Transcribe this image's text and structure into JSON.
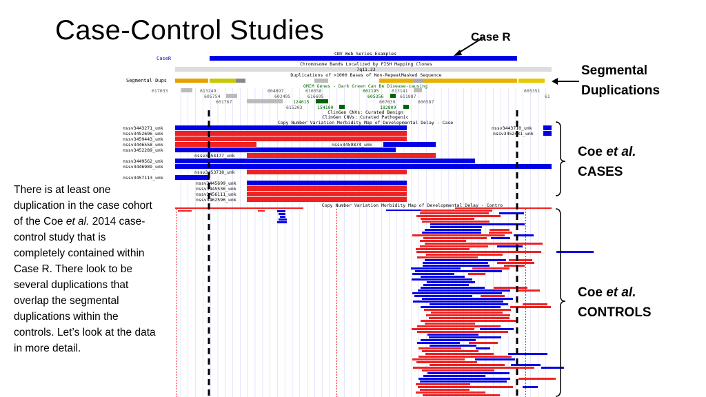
{
  "slide": {
    "title": "Case-Control Studies",
    "case_r_label": "Case R",
    "seg_dup_label_line1": "Segmental",
    "seg_dup_label_line2": "Duplications",
    "cases_label_prefix": "Coe ",
    "cases_label_italic": "et al.",
    "cases_label_line2": "CASES",
    "controls_label_prefix": "Coe ",
    "controls_label_italic": "et al.",
    "controls_label_line2": "CONTROLS",
    "body_part1": "There is at least one duplication in the case cohort of the Coe ",
    "body_italic": "et al.",
    "body_part2": " 2014 case-control study that is completely contained within Case R. There look to be several duplications that overlap the segmental duplications within the controls.  Let’s look at the data in more detail."
  },
  "browser": {
    "case_track_label": "CaseR",
    "track_titles": {
      "cnv_web": "CNV Web Series Examples",
      "fish": "Chromosome Bands Localized by FISH Mapping Clones",
      "band": "7q11.23",
      "dups": "Duplications of >1000 Bases of Non-RepeatMasked Sequence",
      "omim": "OMIM Genes - Dark Green Can Be Disease-causing",
      "clingen_benign": "ClinGen CNVs: Curated Benign",
      "clingen_path": "ClinGen CNVs: Curated Pathogenic",
      "case_map": "Copy Number Variation Morbidity Map of Developmental Delay - Case",
      "control_map": "Copy Number Variation Morbidity Map of Developmental Delay - Contro"
    },
    "seg_dups_label": "Segmental Dups",
    "omim_ids": [
      "617033",
      "613249",
      "605754",
      "601767",
      "604697",
      "602495",
      "615203",
      "616558",
      "616695",
      "124015",
      "154100",
      "602195",
      "605356",
      "607639",
      "182809",
      "613141",
      "611887",
      "600587",
      "605351",
      "61"
    ],
    "case_labels_left": [
      "nssv3443271_unk",
      "nssv3452696_unk",
      "nssv3459443_unk",
      "nssv3446558_unk",
      "nssv3452289_unk",
      "nssv3449562_unk",
      "nssv3446989_unk",
      "nssv3457113_unk"
    ],
    "case_labels_inner": [
      "nssv3454177_unk",
      "nssv3459874_unk",
      "nssv3453718_unk",
      "nssv3445699_unk",
      "nssv3445536_unk",
      "nssv3456111_unk",
      "nssv3462596_unk"
    ],
    "case_labels_right": [
      "nssv3443710_unk",
      "nssv3452431_unk"
    ],
    "colors": {
      "dup_blue": "#0000e6",
      "del_red": "#ee2222",
      "omim_green": "#006400",
      "segdup_orange": "#e8a000",
      "grid": "#c8c8ff"
    }
  }
}
